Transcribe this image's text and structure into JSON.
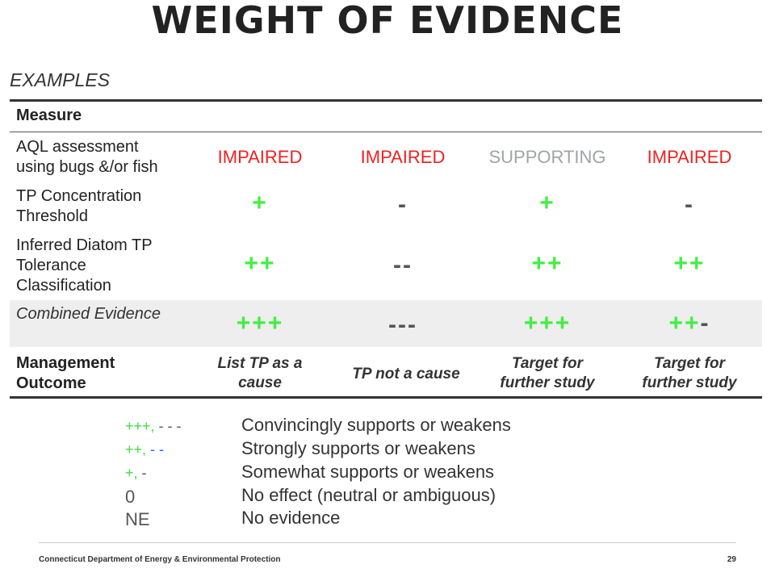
{
  "title": "WEIGHT OF EVIDENCE",
  "subtitle": "EXAMPLES",
  "table": {
    "header": "Measure",
    "rows": [
      {
        "label_lines": [
          "AQL assessment",
          "using bugs &/or fish"
        ],
        "cells": [
          "IMPAIRED",
          "IMPAIRED",
          "SUPPORTING",
          "IMPAIRED"
        ]
      },
      {
        "label_lines": [
          "TP Concentration",
          "Threshold"
        ],
        "cells": [
          "+",
          "-",
          "+",
          "-"
        ]
      },
      {
        "label_lines": [
          "Inferred Diatom TP",
          "Tolerance",
          "Classification"
        ],
        "cells": [
          "++",
          "--",
          "++",
          "++"
        ]
      },
      {
        "label": "Combined Evidence",
        "cells": [
          "+++",
          "---",
          "+++"
        ],
        "cell4": {
          "plus": "++",
          "minus": "-"
        }
      },
      {
        "label_lines": [
          "Management",
          "Outcome"
        ],
        "cells": [
          [
            "List TP as a",
            "cause"
          ],
          [
            "TP not a cause"
          ],
          [
            "Target for",
            "further study"
          ],
          [
            "Target for",
            "further study"
          ]
        ]
      }
    ]
  },
  "legend": [
    {
      "sym_parts": [
        {
          "t": "+++,",
          "c": "g"
        },
        {
          "t": " - - -",
          "c": "k"
        }
      ],
      "text": "Convincingly supports or weakens"
    },
    {
      "sym_parts": [
        {
          "t": "++,",
          "c": "g"
        },
        {
          "t": " - -",
          "c": "b"
        }
      ],
      "text": "Strongly supports or weakens"
    },
    {
      "sym_parts": [
        {
          "t": "+,",
          "c": "g"
        },
        {
          "t": " -",
          "c": "k"
        }
      ],
      "text": "Somewhat supports or weakens"
    },
    {
      "sym_parts": [
        {
          "t": "0",
          "c": "k"
        }
      ],
      "text": "No effect (neutral or ambiguous)"
    },
    {
      "sym_parts": [
        {
          "t": "NE",
          "c": "k"
        }
      ],
      "text": "No evidence"
    }
  ],
  "footer": "Connecticut Department of Energy & Environmental Protection",
  "page_number": "29"
}
